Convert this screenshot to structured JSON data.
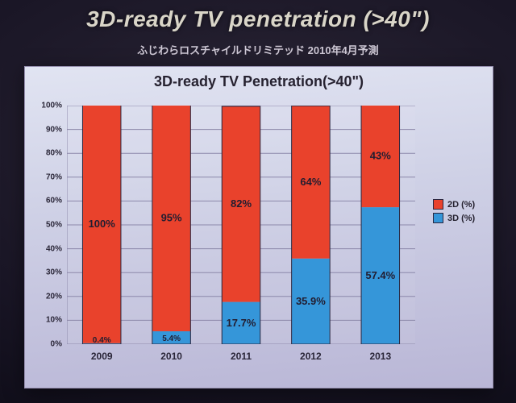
{
  "slide": {
    "title": "3D-ready TV penetration (>40\")",
    "subtitle": "ふじわらロスチャイルドリミテッド  2010年4月予測"
  },
  "chart": {
    "type": "stacked-bar",
    "title": "3D-ready TV Penetration(>40\")",
    "categories": [
      "2009",
      "2010",
      "2011",
      "2012",
      "2013"
    ],
    "series": {
      "3D": {
        "label": "3D (%)",
        "color": "#3596d9",
        "values": [
          0.4,
          5.4,
          17.7,
          35.9,
          57.4
        ]
      },
      "2D": {
        "label": "2D (%)",
        "color": "#e9422c",
        "values": [
          100,
          95,
          82,
          64,
          43
        ]
      }
    },
    "ylim": [
      0,
      100
    ],
    "ytick_step": 10,
    "grid_color": "#8c88aa",
    "bar_width": 0.55,
    "background_color": "transparent",
    "title_fontsize": 18,
    "label_fontsize": 11
  },
  "legend": {
    "items": [
      {
        "label": "2D (%)",
        "color": "#e9422c"
      },
      {
        "label": "3D (%)",
        "color": "#3596d9"
      }
    ]
  }
}
